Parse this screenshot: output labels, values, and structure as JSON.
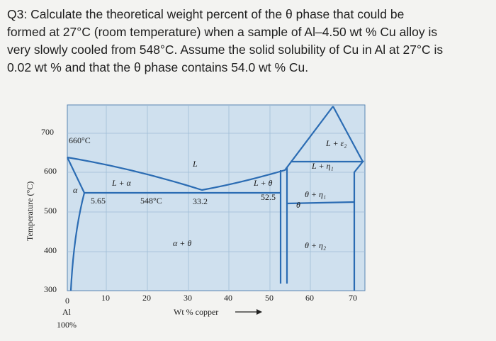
{
  "question": {
    "lines": [
      "Q3: Calculate the theoretical weight percent of the θ phase that could be",
      "formed at 27°C (room temperature) when a sample of Al–4.50 wt % Cu alloy is",
      "very slowly cooled from 548°C. Assume the solid solubility of Cu in Al at 27°C is",
      "0.02 wt % and that the θ phase contains 54.0 wt % Cu."
    ]
  },
  "diagram": {
    "y_axis_label": "Temperature (°C)",
    "y_ticks": [
      "700",
      "600",
      "500",
      "400",
      "300"
    ],
    "x_ticks": [
      "0",
      "10",
      "20",
      "30",
      "40",
      "50",
      "60",
      "70"
    ],
    "x_axis_label": "Wt % copper",
    "x_origin": [
      "Al",
      "100%"
    ],
    "labels": [
      "660°C",
      "L",
      "L + α",
      "α",
      "5.65",
      "548°C",
      "33.2",
      "L + θ",
      "52.5",
      "α + θ",
      "L + ε₂",
      "L + η₁",
      "θ + η₁",
      "θ",
      "θ + η₂"
    ]
  }
}
